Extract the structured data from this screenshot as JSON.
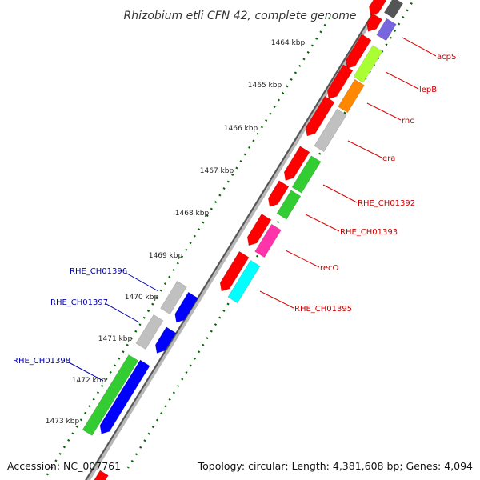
{
  "title": "Rhizobium etli CFN 42, complete genome",
  "footer": {
    "accession": "Accession: NC_007761",
    "topology": "Topology: circular; Length: 4,381,608 bp; Genes: 4,094"
  },
  "kbp_labels": [
    "1464 kbp",
    "1465 kbp",
    "1466 kbp",
    "1467 kbp",
    "1468 kbp",
    "1469 kbp",
    "1470 kbp",
    "1471 kbp",
    "1472 kbp",
    "1473 kbp"
  ],
  "gene_labels_right": [
    "acpS",
    "lepB",
    "rnc",
    "era",
    "RHE_CH01392",
    "RHE_CH01393",
    "recO",
    "RHE_CH01395"
  ],
  "gene_labels_left": [
    "RHE_CH01396",
    "RHE_CH01397",
    "RHE_CH01398"
  ],
  "colors": {
    "red": "#ff0000",
    "green": "#33cc33",
    "blue": "#0000ff",
    "gray": "#c0c0c0",
    "dark_gray": "#555555",
    "purple": "#7766dd",
    "lime": "#aaff33",
    "orange": "#ff8800",
    "magenta": "#ff33aa",
    "cyan": "#00ffff",
    "ruler_green": "#006600"
  }
}
